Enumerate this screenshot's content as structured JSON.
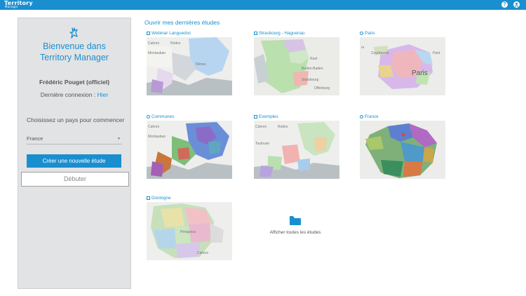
{
  "header": {
    "logo_text": "Territory",
    "logo_sub": "Manager",
    "help_glyph": "?",
    "user_glyph": "●",
    "accent_color": "#1a8fd0"
  },
  "sidebar": {
    "welcome_line1": "Bienvenue dans",
    "welcome_line2": "Territory Manager",
    "user_name": "Frédéric Pouget (officiel)",
    "last_login_label": "Dernière connexion :",
    "last_login_value": "Hier",
    "choose_country_label": "Choisissez un pays pour commencer",
    "country_selected": "France",
    "create_button": "Créer une nouvelle étude",
    "start_button": "Débuter"
  },
  "main": {
    "section_title": "Ouvrir mes dernières études",
    "studies": [
      {
        "title": "Webinar Languedoc",
        "icon": "square-icon"
      },
      {
        "title": "Strasbourg - Haguenau",
        "icon": "square-icon"
      },
      {
        "title": "Paris",
        "icon": "dot-icon"
      },
      {
        "title": "Communes",
        "icon": "refresh-icon"
      },
      {
        "title": "Exemples",
        "icon": "square-icon"
      },
      {
        "title": "France",
        "icon": "refresh-icon"
      },
      {
        "title": "Dordogne",
        "icon": "square-icon"
      }
    ],
    "all_studies_label": "Afficher toutes les études"
  }
}
